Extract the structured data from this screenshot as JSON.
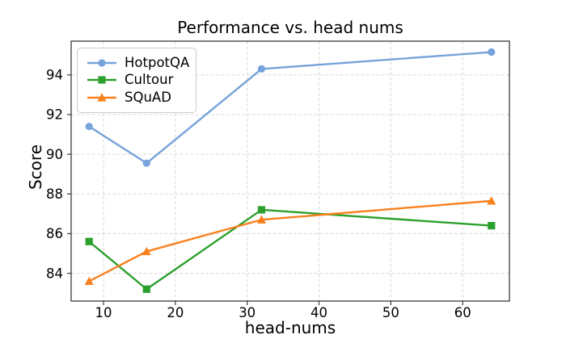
{
  "chart_data": {
    "type": "line",
    "title": "Performance vs. head nums",
    "xlabel": "head-nums",
    "ylabel": "Score",
    "x": [
      8,
      16,
      32,
      64
    ],
    "series": [
      {
        "name": "HotpotQA",
        "marker": "circle",
        "color": "#76a3db",
        "values": [
          91.4,
          89.55,
          94.3,
          95.15
        ]
      },
      {
        "name": "Cultour",
        "marker": "square",
        "color": "#2ca02c",
        "values": [
          85.6,
          83.2,
          87.2,
          86.4
        ]
      },
      {
        "name": "SQuAD",
        "marker": "triangle",
        "color": "#f9801d",
        "values": [
          83.6,
          85.1,
          86.7,
          87.65
        ]
      }
    ],
    "xticks": [
      10,
      20,
      30,
      40,
      50,
      60
    ],
    "yticks": [
      84,
      86,
      88,
      90,
      92,
      94
    ],
    "xlim": [
      5.5,
      66.5
    ],
    "ylim": [
      82.6,
      95.7
    ],
    "grid": true,
    "grid_style": "dashed",
    "legend_position": "upper left",
    "colors": {
      "grid": "#d9d9d9",
      "axis": "#3a3a3a",
      "tick_label": "#000000",
      "background": "#ffffff"
    }
  }
}
